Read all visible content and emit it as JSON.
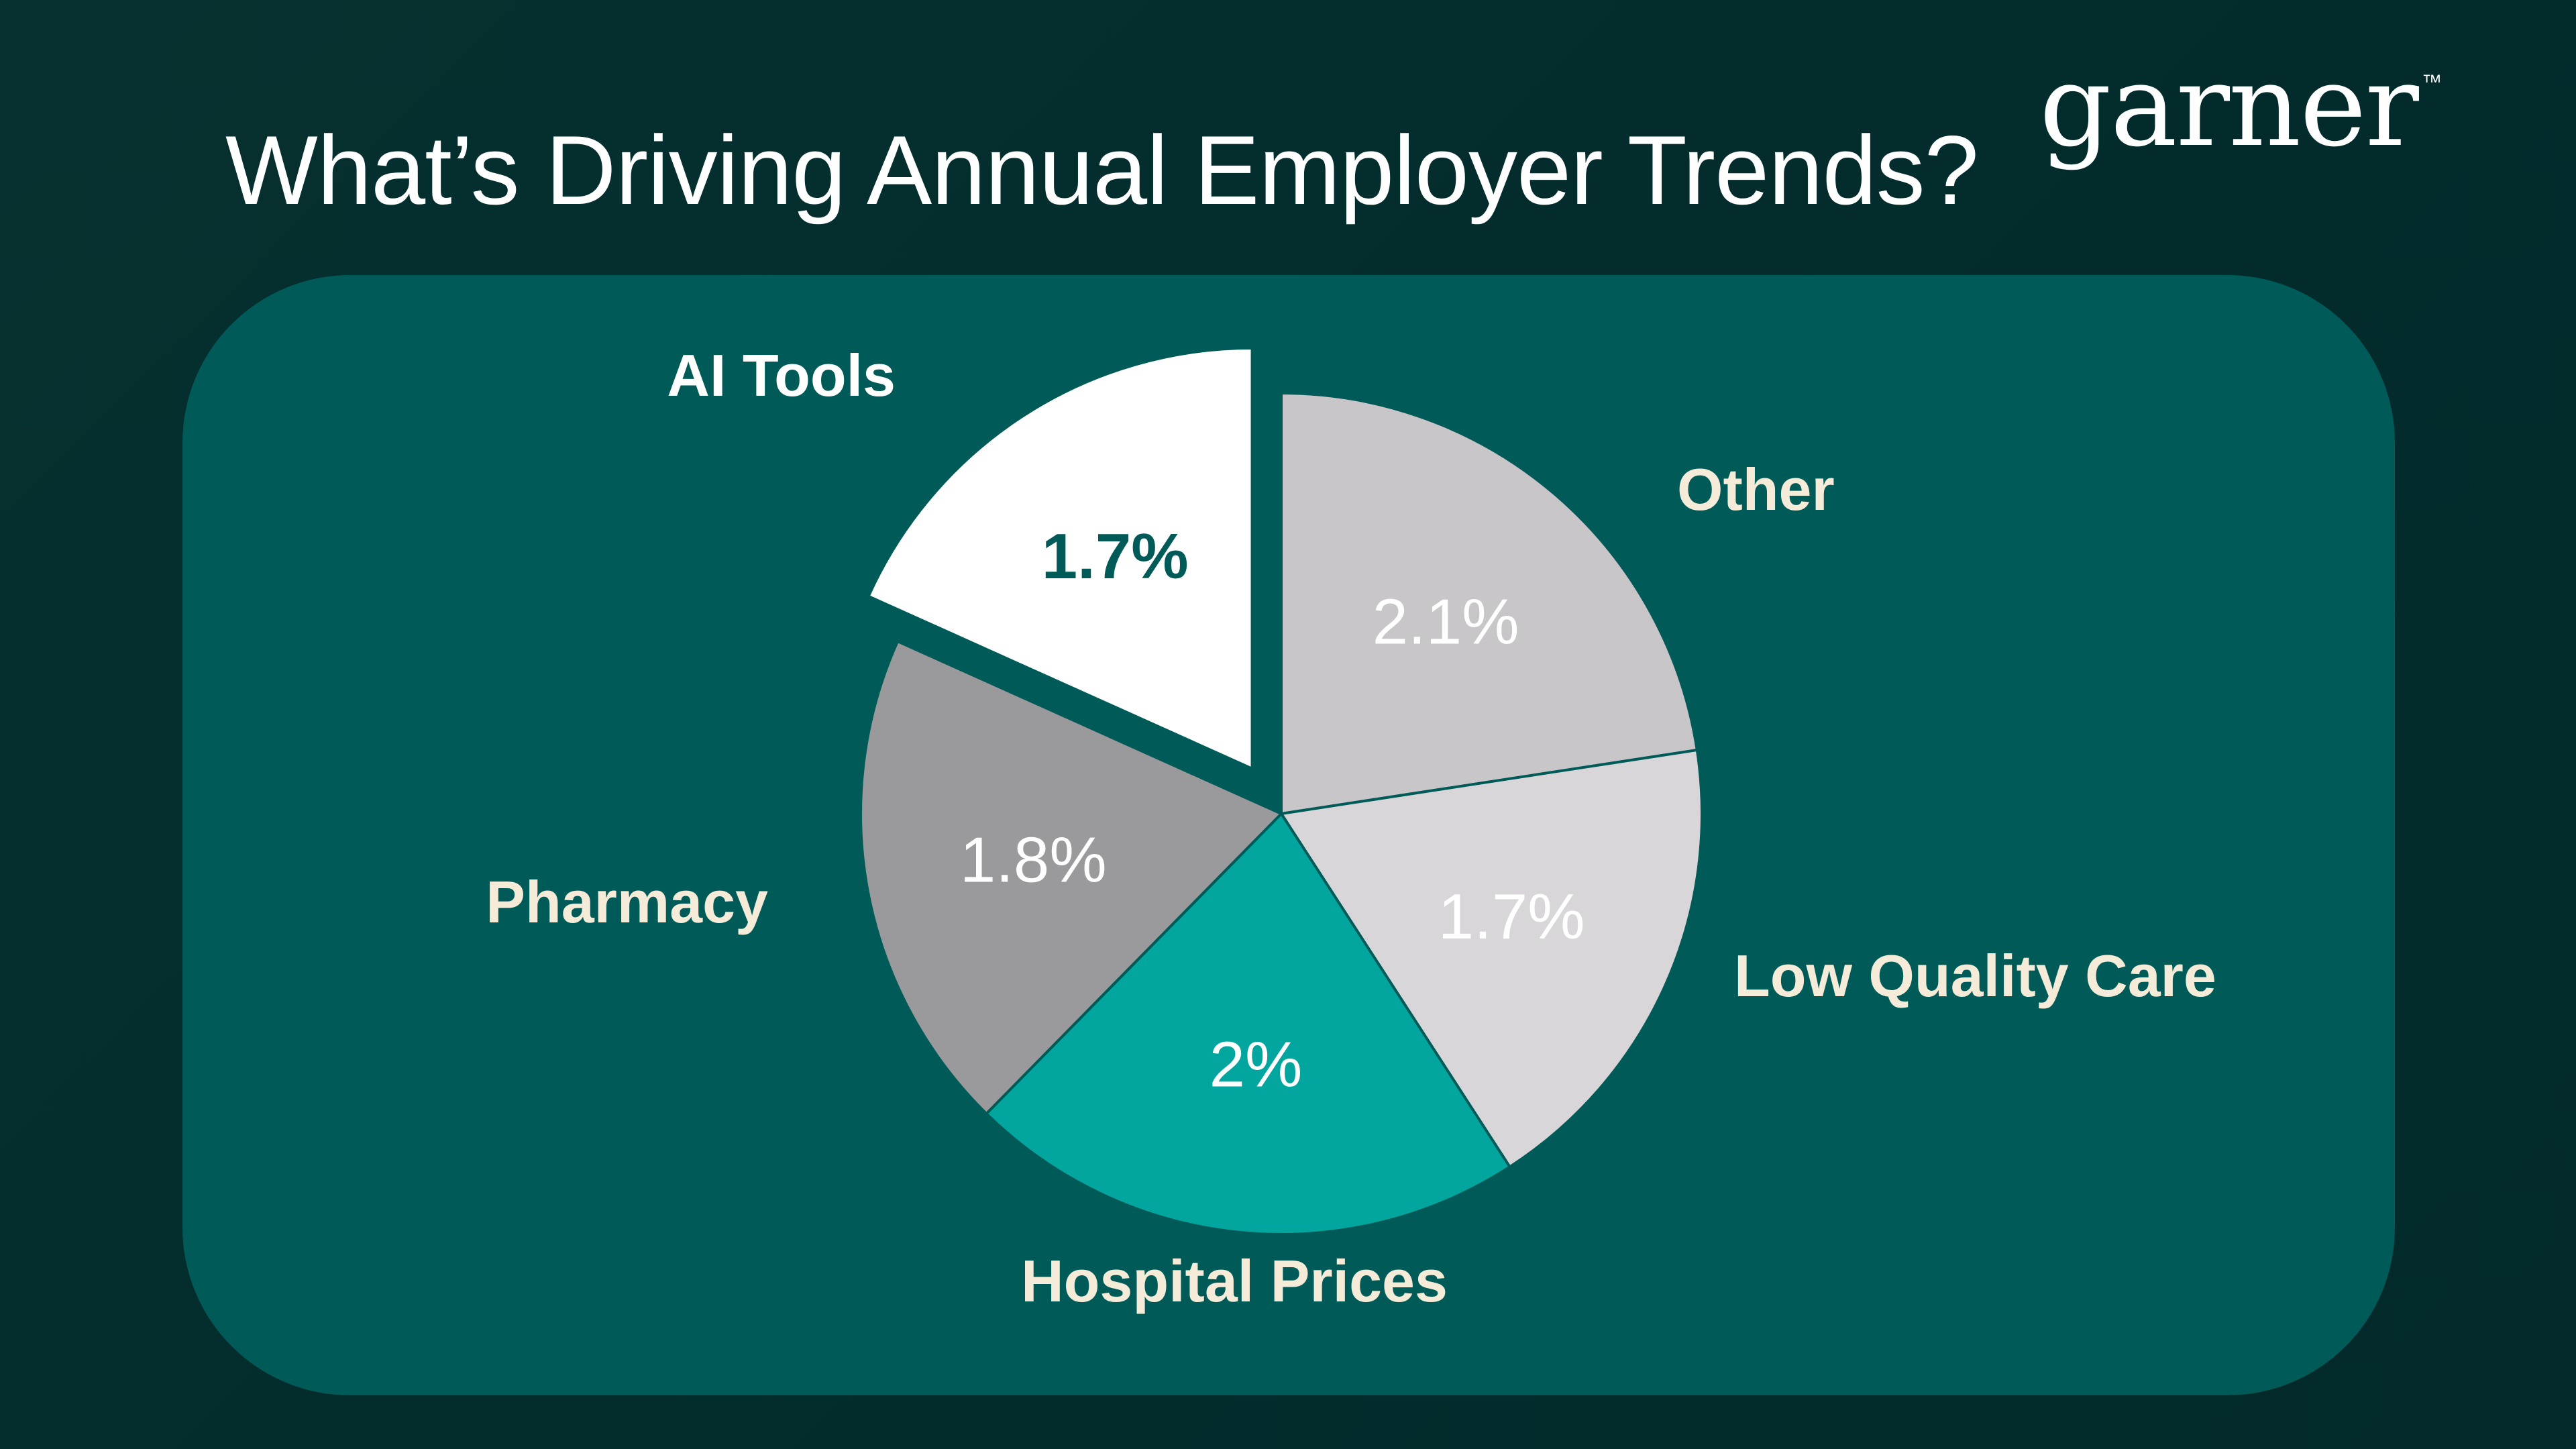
{
  "header": {
    "title": "What’s Driving Annual Employer Trends?",
    "brand": "garner",
    "brand_mark": "™"
  },
  "colors": {
    "background": "#042f2e",
    "panel": "#005b58",
    "label_cream": "#f4ecd8",
    "label_white": "#ffffff"
  },
  "chart_data": {
    "type": "pie",
    "title": "",
    "slices": [
      {
        "category": "Other",
        "label": "2.1%",
        "value": 2.1,
        "color": "#c9c6c9",
        "exploded": false,
        "value_label_color": "#ffffff",
        "category_label_color": "#f4ecd8"
      },
      {
        "category": "Low Quality Care",
        "label": "1.7%",
        "value": 1.7,
        "color": "#d9d6da",
        "exploded": false,
        "value_label_color": "#ffffff",
        "category_label_color": "#f4ecd8"
      },
      {
        "category": "Hospital Prices",
        "label": "2%",
        "value": 2.0,
        "color": "#02a69f",
        "exploded": false,
        "value_label_color": "#ffffff",
        "category_label_color": "#f4ecd8"
      },
      {
        "category": "Pharmacy",
        "label": "1.8%",
        "value": 1.8,
        "color": "#9a999c",
        "exploded": false,
        "value_label_color": "#ffffff",
        "category_label_color": "#f4ecd8"
      },
      {
        "category": "AI Tools",
        "label": "1.7%",
        "value": 1.7,
        "color": "#ffffff",
        "exploded": true,
        "value_label_color": "#005b58",
        "category_label_color": "#ffffff"
      }
    ],
    "legend": "none"
  }
}
